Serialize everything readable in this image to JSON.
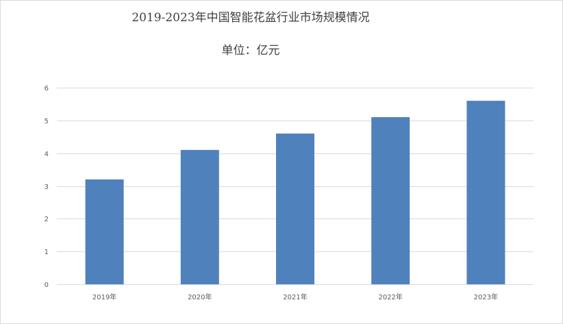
{
  "chart_data": {
    "type": "bar",
    "title": "2019-2023年中国智能花盆行业市场规模情况",
    "subtitle": "单位：亿元",
    "categories": [
      "2019年",
      "2020年",
      "2021年",
      "2022年",
      "2023年"
    ],
    "values": [
      3.2,
      4.1,
      4.6,
      5.1,
      5.6
    ],
    "xlabel": "",
    "ylabel": "",
    "ylim": [
      0,
      6
    ],
    "yticks": [
      0,
      1,
      2,
      3,
      4,
      5,
      6
    ],
    "grid": true,
    "legend": "none",
    "bar_color": "#4f81bd",
    "grid_color": "#d9d9d9"
  }
}
